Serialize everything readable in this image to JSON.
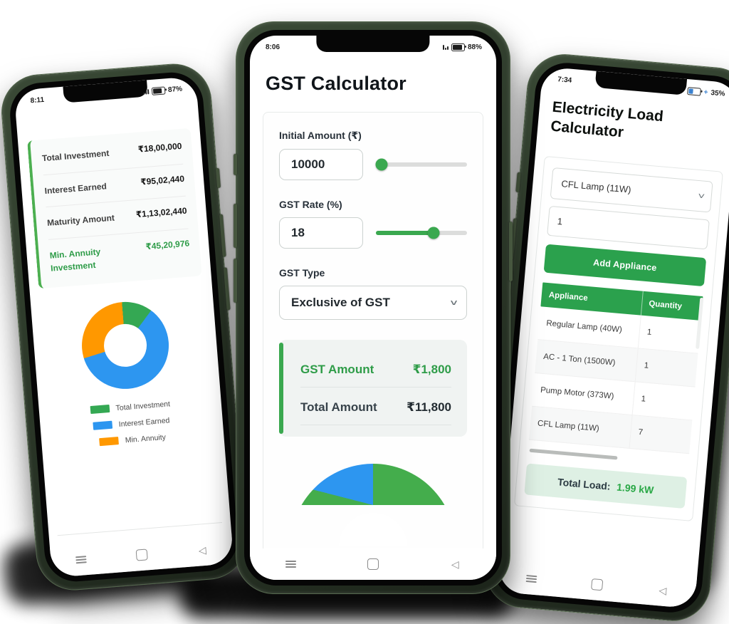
{
  "colors": {
    "accent_green": "#2ba14d",
    "result_green": "#2e9c48",
    "chart_green": "#34a853",
    "chart_blue": "#2d96f0",
    "chart_orange": "#ff9800",
    "slider_green": "#3aa84f",
    "total_load_bg": "#def0e4",
    "phone_frame_green": "#2c3a2a"
  },
  "chart_data": [
    {
      "id": "annuity-donut",
      "type": "pie",
      "donut": true,
      "labels": [
        "Total Investment",
        "Interest Earned",
        "Min. Annuity"
      ],
      "values": [
        1800000,
        9502440,
        4520976
      ],
      "colors": [
        "#34a853",
        "#2d96f0",
        "#ff9800"
      ],
      "legend_position": "bottom"
    },
    {
      "id": "gst-gauge",
      "type": "gauge",
      "half_circle": true,
      "segments": [
        {
          "pct": 8,
          "color": "#44ad4c"
        },
        {
          "pct": 42,
          "color": "#2d96f0"
        },
        {
          "pct": 50,
          "color": "#44ad4c"
        }
      ]
    }
  ],
  "left_phone": {
    "status": {
      "time": "8:11",
      "battery": "87%"
    },
    "summary": [
      {
        "label": "Total Investment",
        "value": "₹18,00,000"
      },
      {
        "label": "Interest Earned",
        "value": "₹95,02,440"
      },
      {
        "label": "Maturity Amount",
        "value": "₹1,13,02,440"
      },
      {
        "label": "Min. Annuity Investment",
        "value": "₹45,20,976"
      }
    ],
    "legend": [
      {
        "label": "Total Investment",
        "color": "#34a853"
      },
      {
        "label": "Interest Earned",
        "color": "#2d96f0"
      },
      {
        "label": "Min. Annuity",
        "color": "#ff9800"
      }
    ]
  },
  "middle_phone": {
    "status": {
      "time": "8:06",
      "battery": "88%"
    },
    "title": "GST Calculator",
    "form": {
      "amount_label": "Initial Amount (₹)",
      "amount_value": "10000",
      "amount_slider_pct": 6,
      "rate_label": "GST Rate (%)",
      "rate_value": "18",
      "rate_slider_pct": 63,
      "type_label": "GST Type",
      "type_value": "Exclusive of GST"
    },
    "result": {
      "gst_label": "GST Amount",
      "gst_value": "₹1,800",
      "total_label": "Total Amount",
      "total_value": "₹11,800"
    }
  },
  "right_phone": {
    "status": {
      "time": "7:34",
      "charge_prefix": "+",
      "battery": "35%"
    },
    "title": "Electricity Load Calculator",
    "appliance_select": "CFL Lamp (11W)",
    "quantity_value": "1",
    "add_button": "Add Appliance",
    "table": {
      "headers": [
        "Appliance",
        "Quantity"
      ],
      "rows": [
        {
          "appliance": "Regular Lamp (40W)",
          "qty": "1"
        },
        {
          "appliance": "AC - 1 Ton (1500W)",
          "qty": "1"
        },
        {
          "appliance": "Pump Motor (373W)",
          "qty": "1"
        },
        {
          "appliance": "CFL Lamp (11W)",
          "qty": "7"
        }
      ]
    },
    "total": {
      "label": "Total Load:",
      "value": "1.99 kW"
    }
  }
}
